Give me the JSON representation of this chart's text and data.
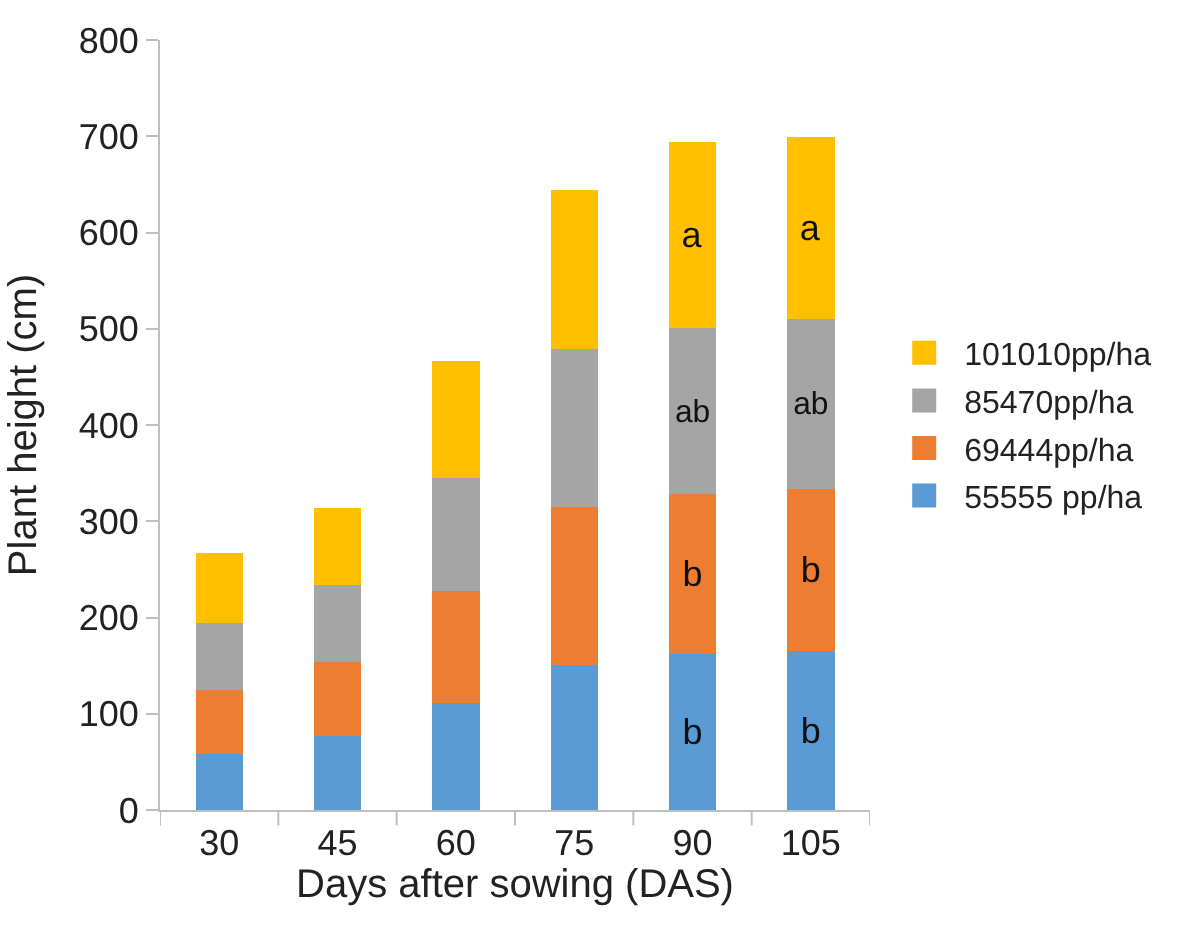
{
  "chart_data": {
    "type": "bar",
    "stacked": true,
    "xlabel": "Days after sowing (DAS)",
    "ylabel": "Plant height (cm)",
    "categories": [
      "30",
      "45",
      "60",
      "75",
      "90",
      "105"
    ],
    "series": [
      {
        "name": "55555 pp/ha",
        "color": "#5b9bd5",
        "values": [
          58,
          77,
          111,
          151,
          162,
          165
        ],
        "value_labels": [
          null,
          null,
          null,
          null,
          "b",
          "b"
        ]
      },
      {
        "name": "69444pp/ha",
        "color": "#ed7d31",
        "values": [
          67,
          77,
          117,
          164,
          166,
          169
        ],
        "value_labels": [
          null,
          null,
          null,
          null,
          "b",
          "b"
        ]
      },
      {
        "name": "85470pp/ha",
        "color": "#a5a5a5",
        "values": [
          69,
          80,
          117,
          164,
          173,
          176
        ],
        "value_labels": [
          null,
          null,
          null,
          null,
          "ab",
          "ab"
        ]
      },
      {
        "name": "101010pp/ha",
        "color": "#ffc000",
        "values": [
          73,
          80,
          121,
          165,
          193,
          189
        ],
        "value_labels": [
          null,
          null,
          null,
          null,
          "a",
          "a"
        ]
      }
    ],
    "ylim": [
      0,
      800
    ],
    "yticks": [
      0,
      100,
      200,
      300,
      400,
      500,
      600,
      700,
      800
    ],
    "legend": "right"
  }
}
